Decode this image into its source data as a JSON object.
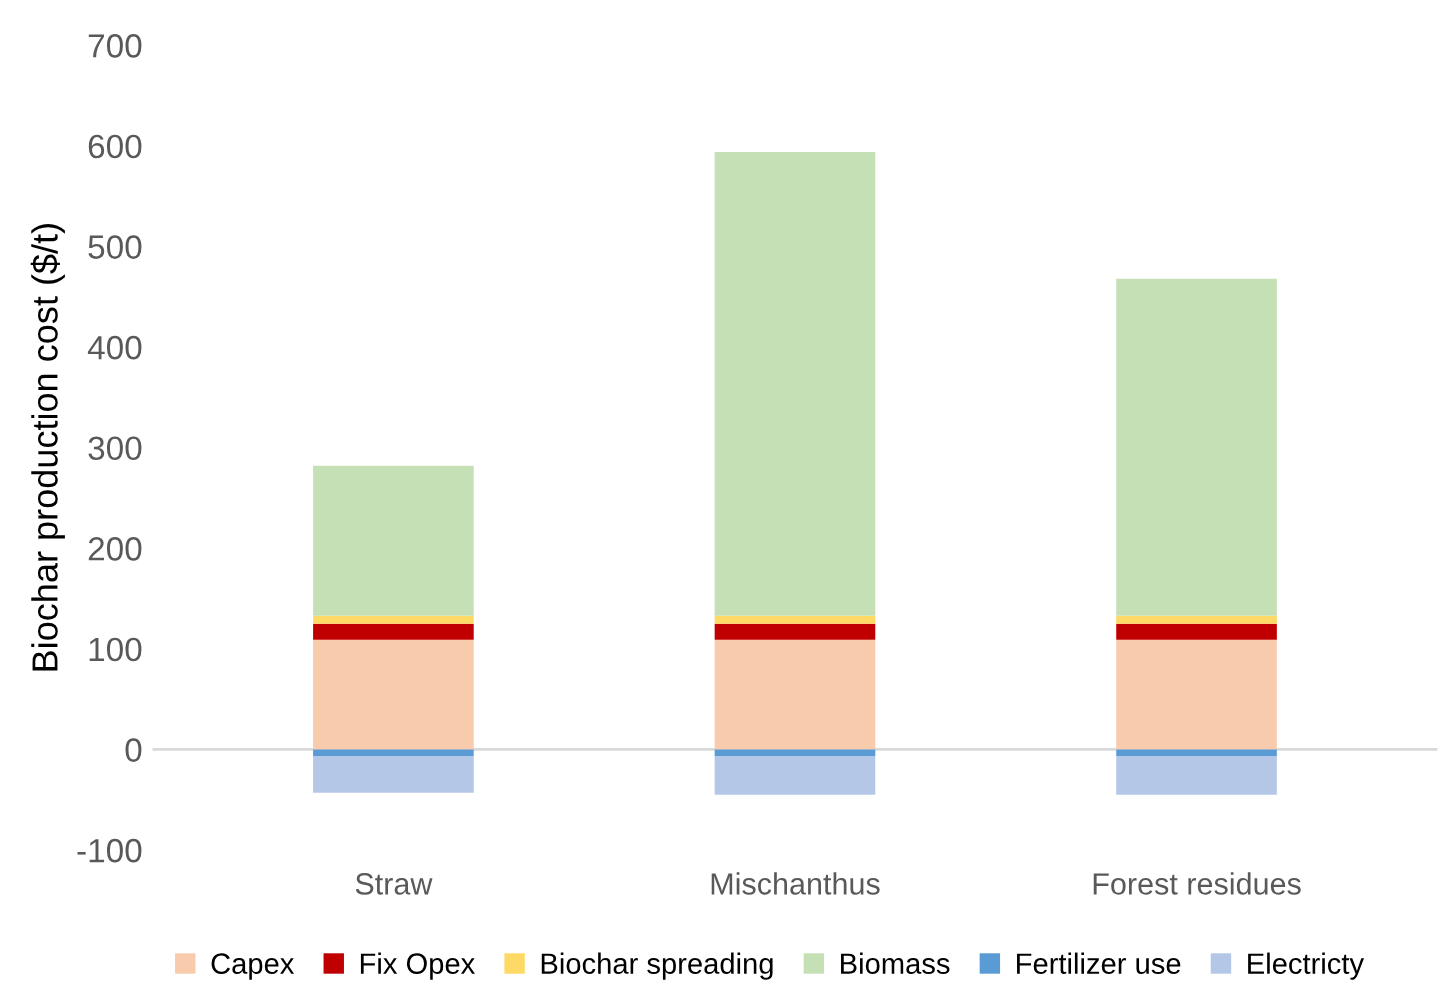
{
  "chart_data": {
    "type": "bar",
    "stacked": true,
    "ylabel": "Biochar production cost ($/t)",
    "categories": [
      "Straw",
      "Mischanthus",
      "Forest residues"
    ],
    "series": [
      {
        "name": "Capex",
        "color": "#f8cbad",
        "values": [
          109,
          109,
          109
        ]
      },
      {
        "name": "Fix Opex",
        "color": "#c00000",
        "values": [
          16,
          16,
          16
        ]
      },
      {
        "name": "Biochar spreading",
        "color": "#ffd966",
        "values": [
          8,
          8,
          8
        ]
      },
      {
        "name": "Biomass",
        "color": "#c5e0b4",
        "values": [
          149,
          461,
          335
        ]
      },
      {
        "name": "Fertilizer use",
        "color": "#5b9bd5",
        "values": [
          -7,
          -7,
          -7
        ]
      },
      {
        "name": "Electricty",
        "color": "#b4c7e7",
        "values": [
          -36,
          -38,
          -38
        ]
      }
    ],
    "ylim": [
      -100,
      700
    ],
    "yticks": [
      -100,
      0,
      100,
      200,
      300,
      400,
      500,
      600,
      700
    ],
    "grid": false,
    "ref_lines": [
      {
        "axis": "y",
        "value": 0,
        "color": "#d9d9d9"
      }
    ],
    "legend": "bottom"
  }
}
